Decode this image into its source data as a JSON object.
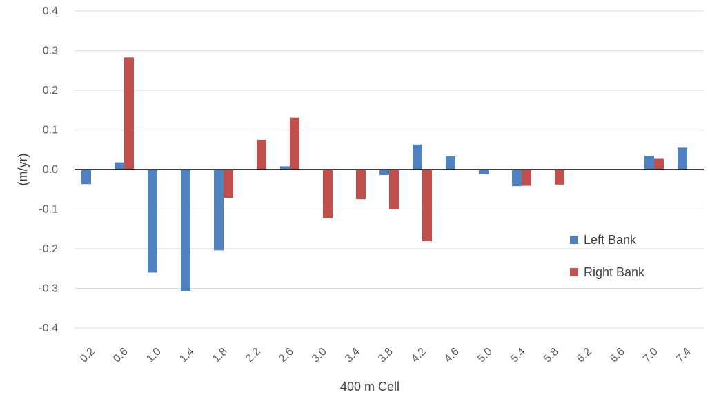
{
  "chart_data": {
    "type": "bar",
    "title": "",
    "xlabel": "400 m Cell",
    "ylabel": "(m/yr)",
    "ylim": [
      -0.4,
      0.4
    ],
    "yticks": [
      0.4,
      0.3,
      0.2,
      0.1,
      0.0,
      -0.1,
      -0.2,
      -0.3,
      -0.4
    ],
    "ytick_labels": [
      "0.4",
      "0.3",
      "0.2",
      "0.1",
      "0.0",
      "-0.1",
      "-0.2",
      "-0.3",
      "-0.4"
    ],
    "categories": [
      "0.2",
      "0.6",
      "1.0",
      "1.4",
      "1.8",
      "2.2",
      "2.6",
      "3.0",
      "3.4",
      "3.8",
      "4.2",
      "4.6",
      "5.0",
      "5.4",
      "5.8",
      "6.2",
      "6.6",
      "7.0",
      "7.4"
    ],
    "grid": true,
    "legend_position": "right",
    "series": [
      {
        "name": "Left Bank",
        "color": "#4f81bd",
        "values": [
          -0.037,
          0.018,
          -0.26,
          -0.307,
          -0.204,
          0,
          0.008,
          0,
          0,
          -0.014,
          0.063,
          0.033,
          -0.012,
          -0.042,
          0,
          0,
          0,
          0.034,
          0.055
        ]
      },
      {
        "name": "Right Bank",
        "color": "#c0504d",
        "values": [
          0,
          0.283,
          0,
          0,
          -0.072,
          0.075,
          0.131,
          -0.123,
          -0.075,
          -0.101,
          -0.181,
          0,
          0,
          -0.041,
          -0.038,
          0,
          0,
          0.027,
          0
        ]
      }
    ]
  }
}
